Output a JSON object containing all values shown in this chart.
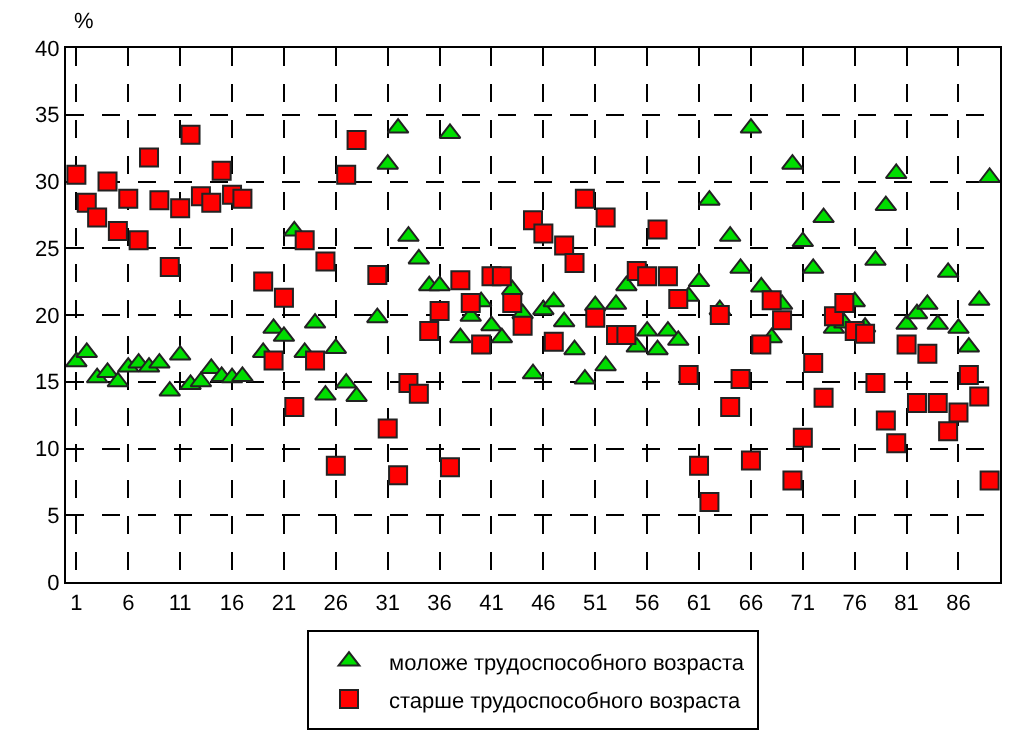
{
  "chart_data": {
    "type": "scatter",
    "ylabel": "%",
    "x": [
      1,
      2,
      3,
      4,
      5,
      6,
      7,
      8,
      9,
      10,
      11,
      12,
      13,
      14,
      15,
      16,
      17,
      19,
      20,
      21,
      22,
      23,
      24,
      25,
      26,
      27,
      28,
      30,
      31,
      32,
      33,
      34,
      35,
      36,
      37,
      38,
      39,
      40,
      41,
      42,
      43,
      44,
      45,
      46,
      47,
      48,
      49,
      50,
      51,
      52,
      53,
      54,
      55,
      56,
      57,
      58,
      59,
      60,
      61,
      62,
      63,
      64,
      65,
      66,
      67,
      68,
      69,
      70,
      71,
      72,
      73,
      74,
      75,
      76,
      77,
      78,
      79,
      80,
      81,
      82,
      83,
      84,
      85,
      86,
      87,
      88,
      89
    ],
    "series": [
      {
        "name": "моложе трудоспособного возраста",
        "color": "#00dd00",
        "marker": "triangle",
        "values": [
          16.5,
          17.2,
          15.3,
          15.7,
          15.0,
          16.1,
          16.4,
          16.1,
          16.4,
          14.3,
          17.0,
          14.8,
          15.0,
          16.0,
          15.4,
          15.3,
          15.4,
          17.2,
          19.0,
          18.4,
          26.3,
          17.2,
          19.4,
          14.0,
          17.5,
          14.9,
          13.9,
          19.8,
          31.3,
          34.0,
          25.9,
          24.2,
          22.2,
          22.2,
          33.6,
          18.3,
          19.9,
          21.0,
          19.2,
          18.3,
          21.9,
          20.1,
          15.6,
          20.4,
          21.0,
          19.5,
          17.4,
          15.2,
          20.7,
          16.2,
          20.8,
          22.2,
          17.6,
          18.8,
          17.4,
          18.8,
          18.1,
          21.4,
          22.5,
          28.6,
          20.4,
          25.9,
          23.5,
          34.0,
          22.1,
          18.3,
          20.8,
          31.3,
          25.5,
          23.5,
          27.3,
          19.0,
          19.4,
          21.0,
          19.1,
          24.1,
          28.2,
          30.6,
          19.3,
          20.1,
          20.8,
          19.3,
          23.2,
          19.0,
          17.6,
          21.1,
          30.3
        ]
      },
      {
        "name": "старше трудоспособного возраста",
        "color": "#ff0000",
        "marker": "square",
        "values": [
          30.5,
          28.4,
          27.3,
          30.0,
          26.3,
          28.7,
          25.6,
          31.8,
          28.6,
          23.6,
          28.0,
          33.5,
          28.9,
          28.4,
          30.8,
          29.0,
          28.7,
          22.5,
          16.6,
          21.3,
          13.1,
          25.6,
          16.6,
          24.0,
          8.7,
          30.5,
          33.1,
          23.0,
          11.5,
          8.0,
          14.9,
          14.1,
          18.8,
          20.3,
          8.6,
          22.6,
          20.9,
          17.8,
          22.9,
          22.9,
          20.9,
          19.2,
          27.1,
          26.1,
          18.0,
          25.2,
          23.9,
          28.7,
          19.8,
          27.3,
          18.5,
          18.5,
          23.3,
          22.9,
          26.4,
          22.9,
          21.2,
          15.5,
          8.7,
          6.0,
          20.0,
          13.1,
          15.2,
          9.1,
          17.8,
          21.1,
          19.6,
          7.6,
          10.8,
          16.4,
          13.8,
          19.9,
          20.9,
          18.8,
          18.6,
          14.9,
          12.1,
          10.4,
          17.8,
          13.4,
          17.1,
          13.4,
          11.3,
          12.7,
          15.5,
          13.9,
          7.6
        ]
      }
    ],
    "xlim": [
      0,
      90
    ],
    "xticks": [
      1,
      6,
      11,
      16,
      21,
      26,
      31,
      36,
      41,
      46,
      51,
      56,
      61,
      66,
      71,
      76,
      81,
      86
    ],
    "ylim": [
      0,
      40
    ],
    "yticks": [
      0,
      5,
      10,
      15,
      20,
      25,
      30,
      35,
      40
    ],
    "grid": true,
    "legend": "bottom"
  }
}
